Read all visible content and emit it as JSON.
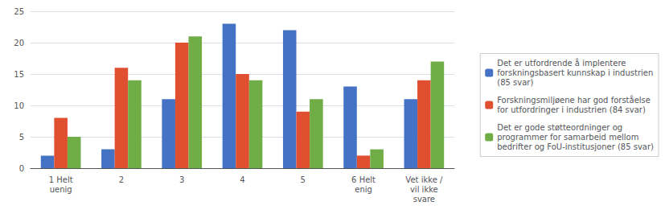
{
  "chart_data": {
    "type": "bar",
    "categories": [
      "1 Helt\nuenig",
      "2",
      "3",
      "4",
      "5",
      "6 Helt\nenig",
      "Vet ikke /\nvil ikke\nsvare"
    ],
    "series": [
      {
        "name": "Det er utfordrende å implentere\nforskningsbasert kunnskap i industrien\n(85 svar)",
        "color": "#4472C4",
        "values": [
          2,
          3,
          11,
          23,
          22,
          13,
          11
        ]
      },
      {
        "name": "Forskningsmiljøene har god forståelse\nfor utfordringer i industrien (84 svar)",
        "color": "#E05030",
        "values": [
          8,
          16,
          20,
          15,
          9,
          2,
          14
        ]
      },
      {
        "name": "Det er gode støtteordninger og\nprogrammer for samarbeid mellom\nbedrifter og FoU-institusjoner (85 svar)",
        "color": "#70AD47",
        "values": [
          5,
          14,
          21,
          14,
          11,
          3,
          17
        ]
      }
    ],
    "ylim": [
      0,
      25
    ],
    "yticks": [
      0,
      5,
      10,
      15,
      20,
      25
    ],
    "grid": true,
    "legend": "right"
  }
}
